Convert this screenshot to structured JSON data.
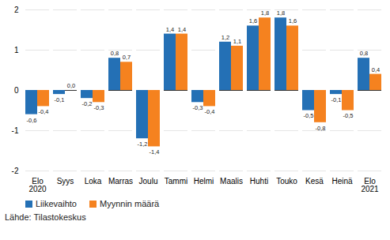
{
  "chart_data": {
    "type": "bar",
    "categories": [
      "Elo\n2020",
      "Syys",
      "Loka",
      "Marras",
      "Joulu",
      "Tammi",
      "Helmi",
      "Maalis",
      "Huhti",
      "Touko",
      "Kesä",
      "Heinä",
      "Elo\n2021"
    ],
    "series": [
      {
        "name": "Liikevaihto",
        "color": "#2470b5",
        "values": [
          -0.6,
          -0.1,
          -0.2,
          0.8,
          -1.2,
          1.4,
          -0.3,
          1.2,
          1.6,
          1.8,
          -0.5,
          -0.1,
          0.8
        ],
        "value_labels": [
          "-0,6",
          "-0,1",
          "-0,2",
          "0,8",
          "-1,2",
          "1,4",
          "-0,3",
          "1,2",
          "1,6",
          "1,8",
          "-0,5",
          "-0,1",
          "0,8"
        ]
      },
      {
        "name": "Myynnin määrä",
        "color": "#f5821f",
        "values": [
          -0.4,
          0.0,
          -0.3,
          0.7,
          -1.4,
          1.4,
          -0.4,
          1.1,
          1.8,
          1.6,
          -0.8,
          -0.5,
          0.4
        ],
        "value_labels": [
          "-0,4",
          "0,0",
          "-0,3",
          "0,7",
          "-1,4",
          "1,4",
          "-0,4",
          "1,1",
          "1,8",
          "1,6",
          "-0,8",
          "-0,5",
          "0,4"
        ]
      }
    ],
    "ylim": [
      -2,
      2
    ],
    "yticks": [
      -2,
      -1,
      0,
      1,
      2
    ],
    "grid": true,
    "data_labels": true,
    "legend": "bottom-left",
    "caption": "Lähde: Tilastokeskus"
  }
}
